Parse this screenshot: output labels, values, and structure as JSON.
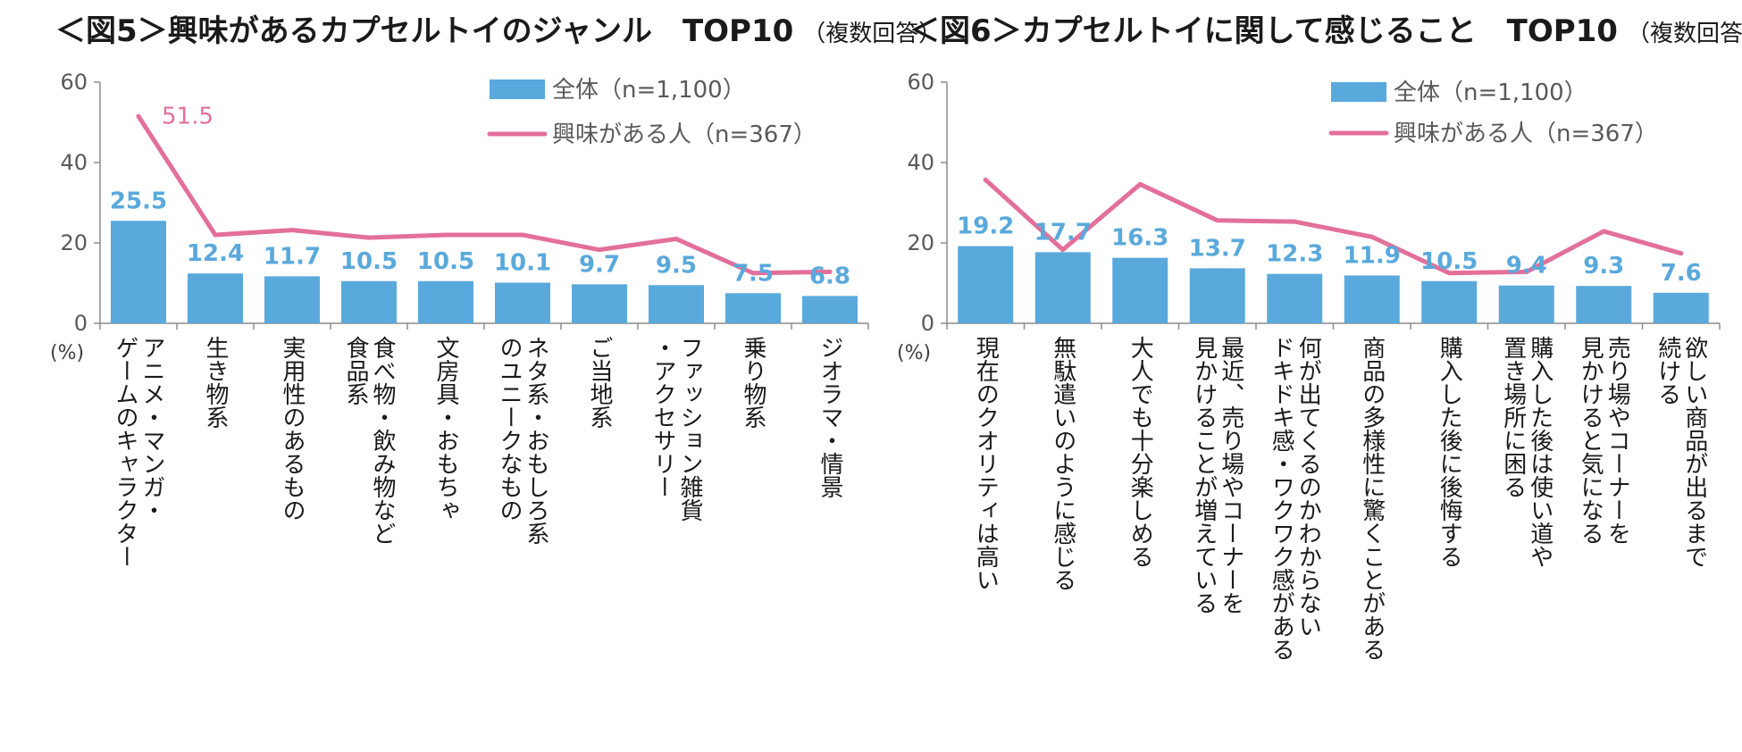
{
  "colors": {
    "bar": "#5aa9dc",
    "line": "#e36f9b",
    "axis": "#8c8c8c"
  },
  "chart_data": [
    {
      "type": "bar",
      "title": "＜図5＞興味があるカプセルトイのジャンル　TOP10",
      "subtitle": "（複数回答）",
      "unit": "(%)",
      "ylim": [
        0,
        60
      ],
      "yticks": [
        0,
        20,
        40,
        60
      ],
      "legend_position": "top-right",
      "categories": [
        [
          "アニメ・マンガ・",
          "ゲームのキャラクター"
        ],
        [
          "生き物系"
        ],
        [
          "実用性のあるもの"
        ],
        [
          "食べ物・飲み物など",
          "食品系"
        ],
        [
          "文房具・おもちゃ"
        ],
        [
          "ネタ系・おもしろ系",
          "のユニークなもの"
        ],
        [
          "ご当地系"
        ],
        [
          "ファッション雑貨",
          "・アクセサリー"
        ],
        [
          "乗り物系"
        ],
        [
          "ジオラマ・情景"
        ]
      ],
      "series": [
        {
          "name": "全体（n=1,100）",
          "type": "bar",
          "values": [
            25.5,
            12.4,
            11.7,
            10.5,
            10.5,
            10.1,
            9.7,
            9.5,
            7.5,
            6.8
          ],
          "labels": [
            "25.5",
            "12.4",
            "11.7",
            "10.5",
            "10.5",
            "10.1",
            "9.7",
            "9.5",
            "7.5",
            "6.8"
          ]
        },
        {
          "name": "興味がある人（n=367）",
          "type": "line",
          "values": [
            51.5,
            22.0,
            23.2,
            21.3,
            22.0,
            22.0,
            18.3,
            21.0,
            12.5,
            12.8
          ],
          "labels": [
            "51.5",
            "",
            "",
            "",
            "",
            "",
            "",
            "",
            "",
            ""
          ]
        }
      ]
    },
    {
      "type": "bar",
      "title": "＜図6＞カプセルトイに関して感じること　TOP10",
      "subtitle": "（複数回答）",
      "unit": "(%)",
      "ylim": [
        0,
        60
      ],
      "yticks": [
        0,
        20,
        40,
        60
      ],
      "legend_position": "top-right",
      "categories": [
        [
          "現在のクオリティは高い"
        ],
        [
          "無駄遣いのように感じる"
        ],
        [
          "大人でも十分楽しめる"
        ],
        [
          "最近、売り場やコーナーを",
          "見かけることが増えている"
        ],
        [
          "何が出てくるのかわからない",
          "ドキドキ感・ワクワク感がある"
        ],
        [
          "商品の多様性に驚くことがある"
        ],
        [
          "購入した後に後悔する"
        ],
        [
          "購入した後は使い道や",
          "置き場所に困る"
        ],
        [
          "売り場やコーナーを",
          "見かけると気になる"
        ],
        [
          "欲しい商品が出るまで",
          "続ける"
        ]
      ],
      "series": [
        {
          "name": "全体（n=1,100）",
          "type": "bar",
          "values": [
            19.2,
            17.7,
            16.3,
            13.7,
            12.3,
            11.9,
            10.5,
            9.4,
            9.3,
            7.6
          ],
          "labels": [
            "19.2",
            "17.7",
            "16.3",
            "13.7",
            "12.3",
            "11.9",
            "10.5",
            "9.4",
            "9.3",
            "7.6"
          ]
        },
        {
          "name": "興味がある人（n=367）",
          "type": "line",
          "values": [
            35.7,
            18.3,
            34.6,
            25.6,
            25.3,
            21.5,
            12.5,
            12.8,
            22.9,
            17.4
          ],
          "labels": [
            "",
            "",
            "",
            "",
            "",
            "",
            "",
            "",
            "",
            ""
          ]
        }
      ]
    }
  ]
}
